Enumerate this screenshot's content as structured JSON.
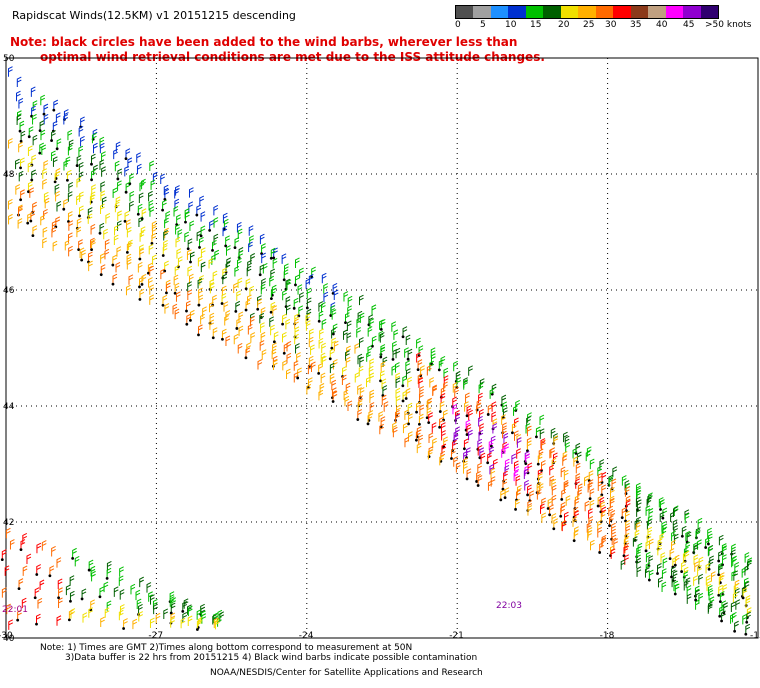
{
  "title": "Rapidscat Winds(12.5KM) v1 20151215 descending",
  "notes": {
    "line1": "Note: black circles have been added to the wind barbs, wherever less than",
    "line2": "optimal wind retrieval conditions are met due to the ISS attitude changes."
  },
  "legend": {
    "unit": "knots",
    "labels": [
      "0",
      "5",
      "10",
      "15",
      "20",
      "25",
      "30",
      "35",
      "40",
      "45",
      ">50 knots"
    ],
    "colors": [
      "#505050",
      "#a0a0a0",
      "#1e90ff",
      "#0030d0",
      "#00c000",
      "#006000",
      "#f0e000",
      "#ffb000",
      "#ff6a00",
      "#ff0000",
      "#8b3a1a",
      "#c0a080",
      "#ff00ff",
      "#9000d0",
      "#300070"
    ]
  },
  "map": {
    "lat_labels": [
      "50",
      "48",
      "46",
      "44",
      "42",
      "40"
    ],
    "lon_labels": [
      "-30",
      "-27",
      "-24",
      "-21",
      "-18",
      "-15"
    ],
    "time_labels": [
      "22:01",
      "22:03"
    ],
    "swaths": [
      {
        "name": "main-swath",
        "start": "30W 50N",
        "end": "15W 40N"
      },
      {
        "name": "lower-left-swath",
        "start": "30W 42N",
        "end": "26W 40N"
      }
    ]
  },
  "footer": {
    "line1": "Note: 1) Times are GMT 2)Times along bottom correspond to measurement at 50N",
    "line2": "3)Data buffer is 22 hrs from 20151215 4) Black wind barbs indicate possible contamination",
    "line3": "NOAA/NESDIS/Center for Satellite Applications and Research"
  }
}
